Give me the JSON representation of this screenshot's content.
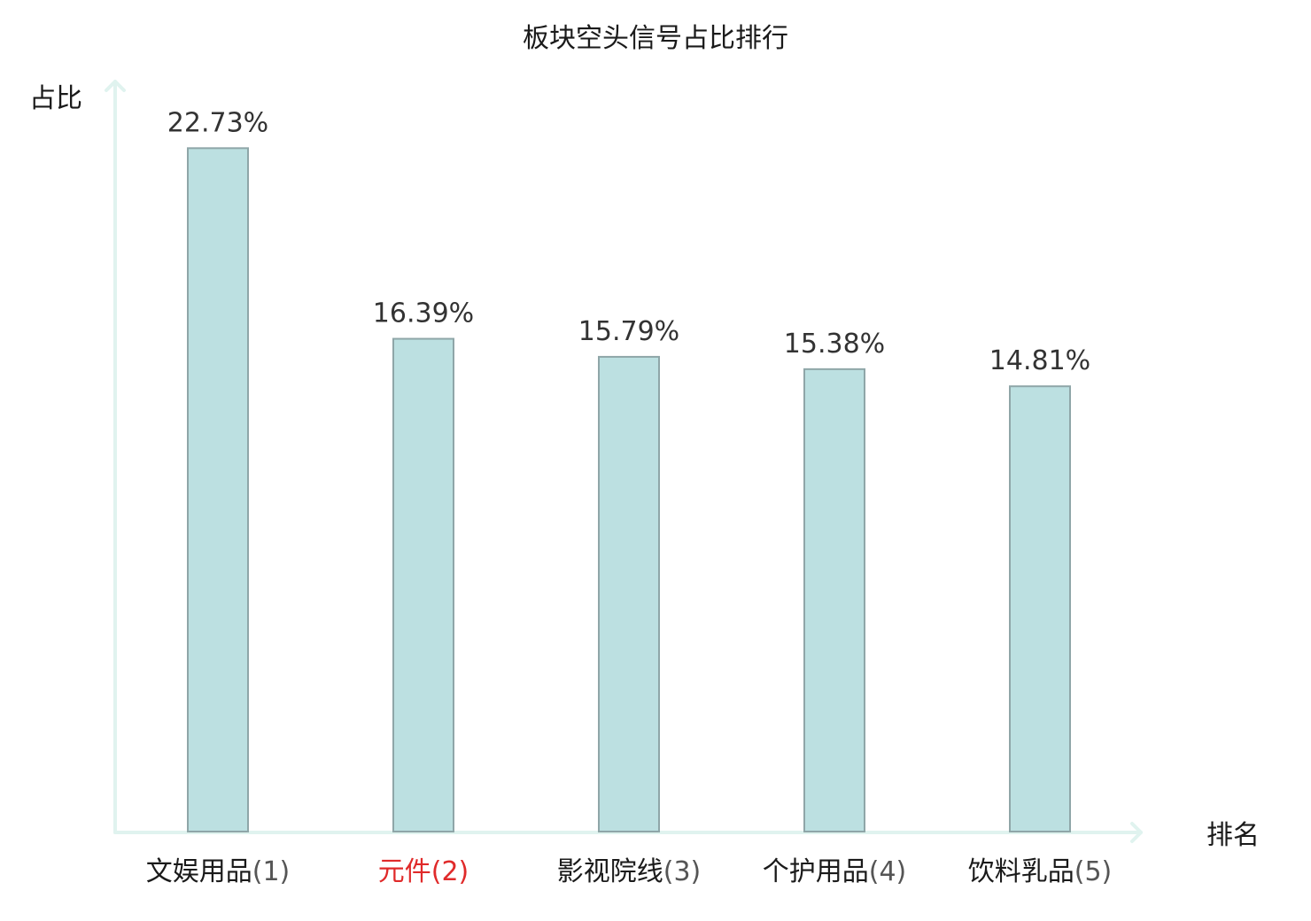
{
  "chart_data": {
    "type": "bar",
    "title": "板块空头信号占比排行",
    "xlabel": "排名",
    "ylabel": "占比",
    "categories": [
      "文娱用品",
      "元件",
      "影视院线",
      "个护用品",
      "饮料乳品"
    ],
    "ranks": [
      "(1)",
      "(2)",
      "(3)",
      "(4)",
      "(5)"
    ],
    "highlight_index": 1,
    "values": [
      22.73,
      16.39,
      15.79,
      15.38,
      14.81
    ],
    "value_labels": [
      "22.73%",
      "16.39%",
      "15.79%",
      "15.38%",
      "14.81%"
    ],
    "ylim": [
      0,
      25
    ],
    "grid": false,
    "legend": "none"
  },
  "colors": {
    "bar_fill": "#bce0e1",
    "bar_stroke": "#8fa6a8",
    "axis": "#e0f3ef",
    "category_text": "#1a1a1a",
    "rank_text": "#555555",
    "highlight_text": "#e02a2a",
    "value_text": "#333333"
  }
}
